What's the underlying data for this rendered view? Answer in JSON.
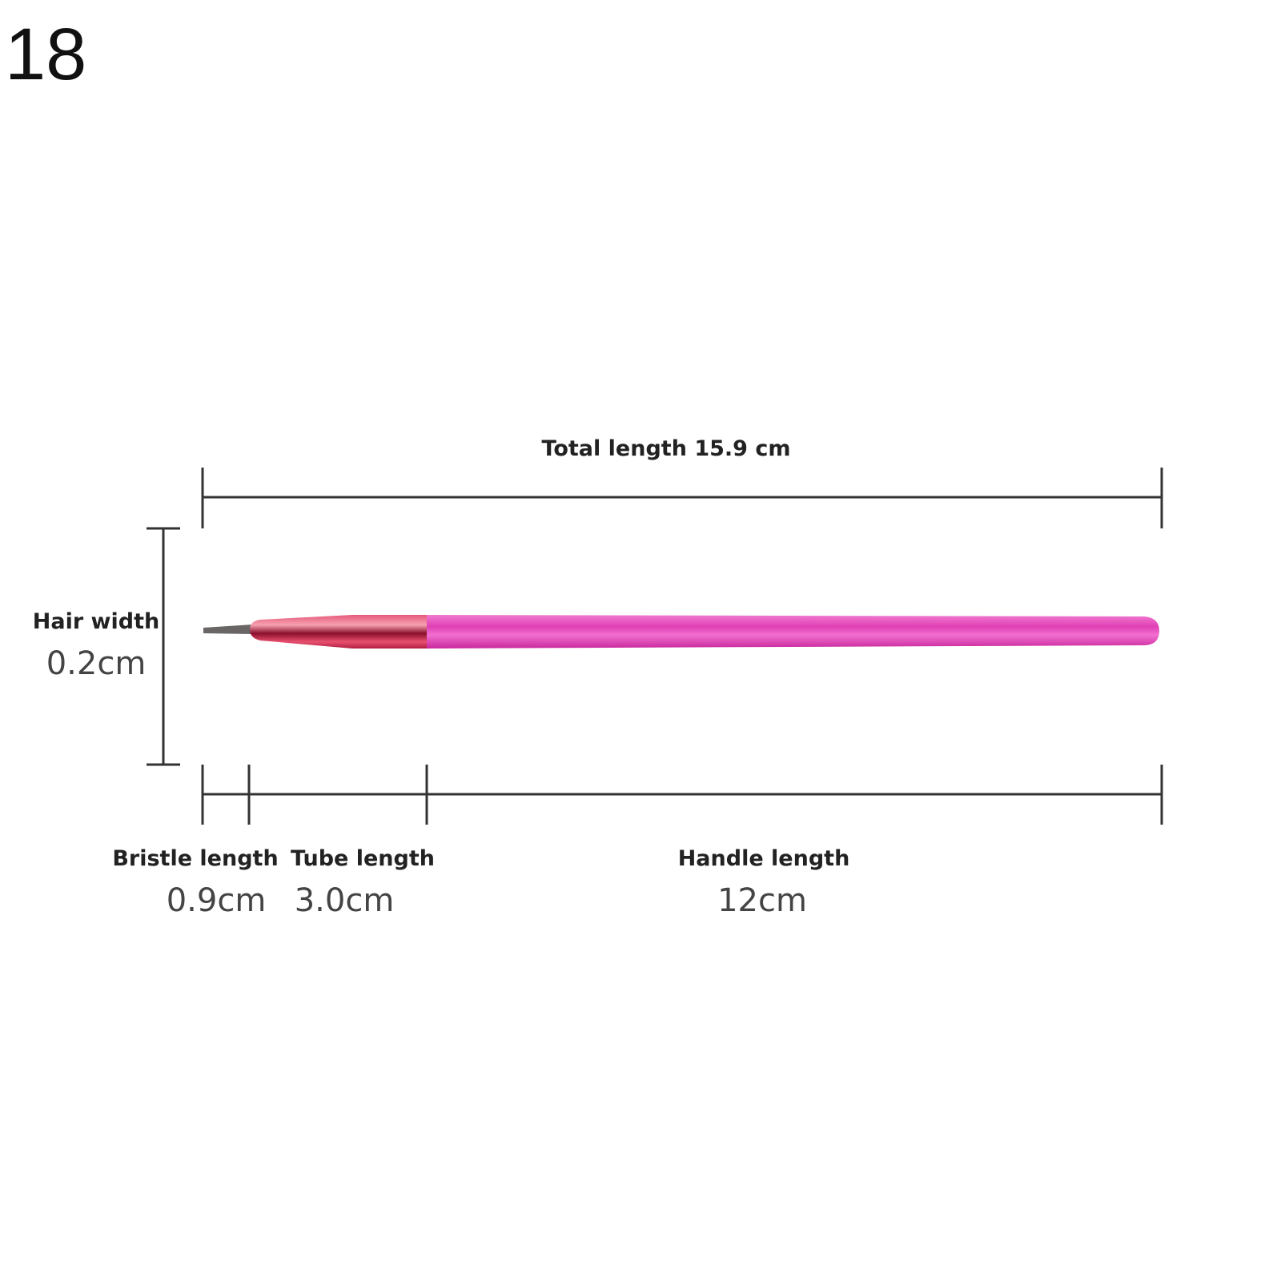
{
  "image_number": "18",
  "dimensions": {
    "total": {
      "label": "Total length 15.9 cm"
    },
    "hair_width": {
      "label": "Hair width",
      "value": "0.2cm"
    },
    "bristle": {
      "label": "Bristle length",
      "value": "0.9cm"
    },
    "tube": {
      "label": "Tube length",
      "value": "3.0cm"
    },
    "handle": {
      "label": "Handle length",
      "value": "12cm"
    }
  },
  "colors": {
    "handle": "#e53fb8",
    "ferrule": "#c8264a",
    "bristle": "#666666",
    "lines": "#333333"
  }
}
